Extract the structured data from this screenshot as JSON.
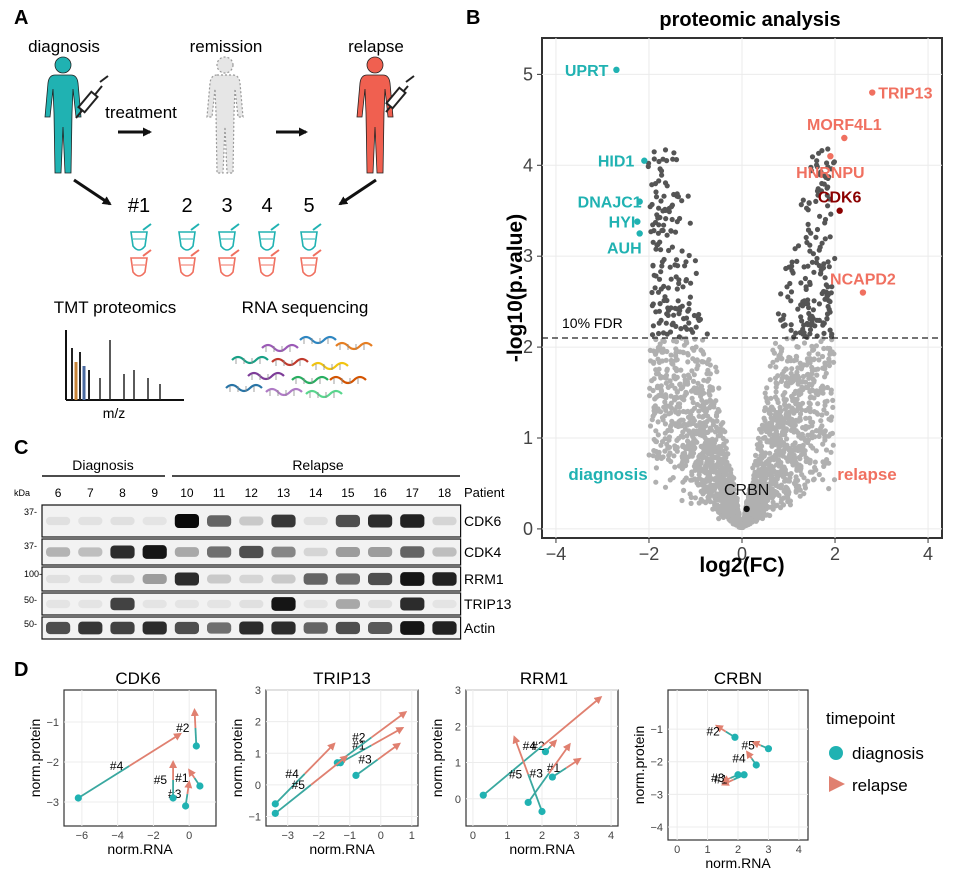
{
  "panels": {
    "a": "A",
    "b": "B",
    "c": "C",
    "d": "D"
  },
  "colors": {
    "diagnosis": "#20b2b2",
    "relapse": "#f07060",
    "relapse_dark": "#8b0000",
    "remission": "#b8b8b8",
    "sig_point": "#555555",
    "nonsig_point": "#b0b0b0",
    "arrow": "#e08070",
    "seg": "#3aa8a0"
  },
  "panel_a": {
    "timepoints": [
      "diagnosis",
      "remission",
      "relapse"
    ],
    "treatment": "treatment",
    "patients": [
      "#1",
      "2",
      "3",
      "4",
      "5"
    ],
    "tmt": "TMT proteomics",
    "rnaseq": "RNA sequencing",
    "mz": "m/z",
    "icons": [
      "person-icon",
      "syringe-icon",
      "tube-icon",
      "mass-spectrum-icon",
      "rna-strand-icon"
    ]
  },
  "panel_b": {
    "chart_data": {
      "type": "scatter",
      "title": "proteomic analysis",
      "xlabel": "log2(FC)",
      "ylabel": "-log10(p.value)",
      "xlim": [
        -4.3,
        4.3
      ],
      "ylim": [
        -0.1,
        5.4
      ],
      "xticks": [
        -4,
        -2,
        0,
        2,
        4
      ],
      "yticks": [
        0,
        1,
        2,
        3,
        4,
        5
      ],
      "fdr_line": 2.1,
      "fdr_label": "10% FDR",
      "side_labels": {
        "left": "diagnosis",
        "right": "relapse"
      },
      "labeled_points": [
        {
          "label": "UPRT",
          "x": -2.7,
          "y": 5.05,
          "group": "diagnosis"
        },
        {
          "label": "HID1",
          "x": -2.1,
          "y": 4.05,
          "group": "diagnosis"
        },
        {
          "label": "DNAJC1",
          "x": -2.2,
          "y": 3.6,
          "group": "diagnosis"
        },
        {
          "label": "HYI",
          "x": -2.25,
          "y": 3.38,
          "group": "diagnosis"
        },
        {
          "label": "AUH",
          "x": -2.2,
          "y": 3.25,
          "group": "diagnosis"
        },
        {
          "label": "TRIP13",
          "x": 2.8,
          "y": 4.8,
          "group": "relapse"
        },
        {
          "label": "MORF4L1",
          "x": 2.2,
          "y": 4.3,
          "group": "relapse"
        },
        {
          "label": "HNRNPU",
          "x": 1.9,
          "y": 4.1,
          "group": "relapse"
        },
        {
          "label": "CDK6",
          "x": 2.1,
          "y": 3.5,
          "group": "relapse_dark"
        },
        {
          "label": "NCAPD2",
          "x": 2.6,
          "y": 2.6,
          "group": "relapse"
        },
        {
          "label": "CRBN",
          "x": 0.1,
          "y": 0.22,
          "group": "neutral"
        }
      ]
    }
  },
  "panel_c": {
    "groups": {
      "diagnosis": "Diagnosis",
      "relapse": "Relapse"
    },
    "kda": "kDa",
    "patient_label": "Patient",
    "lanes": [
      "6",
      "7",
      "8",
      "9",
      "10",
      "11",
      "12",
      "13",
      "14",
      "15",
      "16",
      "17",
      "18"
    ],
    "blots": [
      {
        "name": "CDK6",
        "marker": "37-",
        "intensity": [
          0.05,
          0.04,
          0.05,
          0.03,
          1.0,
          0.6,
          0.15,
          0.8,
          0.05,
          0.7,
          0.85,
          0.9,
          0.1
        ]
      },
      {
        "name": "CDK4",
        "marker": "37-",
        "intensity": [
          0.25,
          0.2,
          0.85,
          0.95,
          0.3,
          0.55,
          0.7,
          0.45,
          0.1,
          0.35,
          0.35,
          0.6,
          0.2
        ]
      },
      {
        "name": "RRM1",
        "marker": "100-",
        "intensity": [
          0.05,
          0.05,
          0.1,
          0.35,
          0.85,
          0.15,
          0.1,
          0.15,
          0.6,
          0.55,
          0.7,
          0.95,
          0.9
        ]
      },
      {
        "name": "TRIP13",
        "marker": "50-",
        "intensity": [
          0.03,
          0.03,
          0.75,
          0.03,
          0.03,
          0.03,
          0.05,
          0.95,
          0.03,
          0.3,
          0.05,
          0.85,
          0.03
        ]
      },
      {
        "name": "Actin",
        "marker": "50-",
        "intensity": [
          0.7,
          0.8,
          0.75,
          0.85,
          0.7,
          0.55,
          0.85,
          0.85,
          0.6,
          0.7,
          0.65,
          0.95,
          0.9
        ]
      }
    ]
  },
  "panel_d": {
    "xlabel": "norm.RNA",
    "ylabel": "norm.protein",
    "legend": {
      "title": "timepoint",
      "diagnosis": "diagnosis",
      "relapse": "relapse"
    },
    "chart_data": [
      {
        "type": "scatter",
        "title": "CDK6",
        "xlim": [
          -7,
          1.5
        ],
        "ylim": [
          -3.6,
          -0.2
        ],
        "xticks": [
          -6,
          -4,
          -2,
          0
        ],
        "yticks": [
          -1,
          -2,
          -3
        ],
        "arrows": [
          {
            "label": "#1",
            "from": [
              0.6,
              -2.6
            ],
            "to": [
              0.0,
              -2.2
            ]
          },
          {
            "label": "#2",
            "from": [
              0.4,
              -1.6
            ],
            "to": [
              0.3,
              -0.7
            ]
          },
          {
            "label": "#3",
            "from": [
              -0.2,
              -3.1
            ],
            "to": [
              0.0,
              -2.5
            ]
          },
          {
            "label": "#4",
            "from": [
              -6.2,
              -2.9
            ],
            "to": [
              -0.5,
              -1.3
            ]
          },
          {
            "label": "#5",
            "from": [
              -0.9,
              -2.9
            ],
            "to": [
              -0.9,
              -2.0
            ]
          }
        ]
      },
      {
        "type": "scatter",
        "title": "TRIP13",
        "xlim": [
          -3.7,
          1.2
        ],
        "ylim": [
          -1.3,
          3.0
        ],
        "xticks": [
          -3,
          -2,
          -1,
          0,
          1
        ],
        "yticks": [
          -1,
          0,
          1,
          2,
          3
        ],
        "arrows": [
          {
            "label": "#1",
            "from": [
              -1.3,
              0.7
            ],
            "to": [
              0.7,
              1.8
            ]
          },
          {
            "label": "#2",
            "from": [
              -1.4,
              0.7
            ],
            "to": [
              0.8,
              2.3
            ]
          },
          {
            "label": "#3",
            "from": [
              -0.8,
              0.3
            ],
            "to": [
              0.6,
              1.3
            ]
          },
          {
            "label": "#4",
            "from": [
              -3.4,
              -0.6
            ],
            "to": [
              -1.5,
              1.3
            ]
          },
          {
            "label": "#5",
            "from": [
              -3.4,
              -0.9
            ],
            "to": [
              -1.1,
              0.9
            ]
          }
        ]
      },
      {
        "type": "scatter",
        "title": "RRM1",
        "xlim": [
          -0.2,
          4.2
        ],
        "ylim": [
          -0.75,
          3.0
        ],
        "xticks": [
          0,
          1,
          2,
          3,
          4
        ],
        "yticks": [
          0,
          1,
          2
        ],
        "y_extra_tick": 3,
        "arrows": [
          {
            "label": "#1",
            "from": [
              2.3,
              0.6
            ],
            "to": [
              3.1,
              1.1
            ]
          },
          {
            "label": "#2",
            "from": [
              2.1,
              1.3
            ],
            "to": [
              2.4,
              1.6
            ]
          },
          {
            "label": "#3",
            "from": [
              1.6,
              -0.1
            ],
            "to": [
              2.8,
              1.5
            ]
          },
          {
            "label": "#4",
            "from": [
              0.3,
              0.1
            ],
            "to": [
              3.7,
              2.8
            ]
          },
          {
            "label": "#5",
            "from": [
              2.0,
              -0.35
            ],
            "to": [
              1.2,
              1.7
            ]
          }
        ]
      },
      {
        "type": "scatter",
        "title": "CRBN",
        "xlim": [
          -0.3,
          4.3
        ],
        "ylim": [
          -4.4,
          0.2
        ],
        "xticks": [
          0,
          1,
          2,
          3,
          4
        ],
        "yticks": [
          -1,
          -2,
          -3,
          -4
        ],
        "arrows": [
          {
            "label": "#1",
            "from": [
              2.2,
              -2.4
            ],
            "to": [
              1.5,
              -2.7
            ]
          },
          {
            "label": "#2",
            "from": [
              1.9,
              -1.25
            ],
            "to": [
              1.3,
              -0.9
            ]
          },
          {
            "label": "#3",
            "from": [
              2.0,
              -2.4
            ],
            "to": [
              1.5,
              -2.6
            ]
          },
          {
            "label": "#4",
            "from": [
              2.6,
              -2.1
            ],
            "to": [
              2.3,
              -1.7
            ]
          },
          {
            "label": "#5",
            "from": [
              3.0,
              -1.6
            ],
            "to": [
              2.5,
              -1.4
            ]
          }
        ]
      }
    ]
  }
}
